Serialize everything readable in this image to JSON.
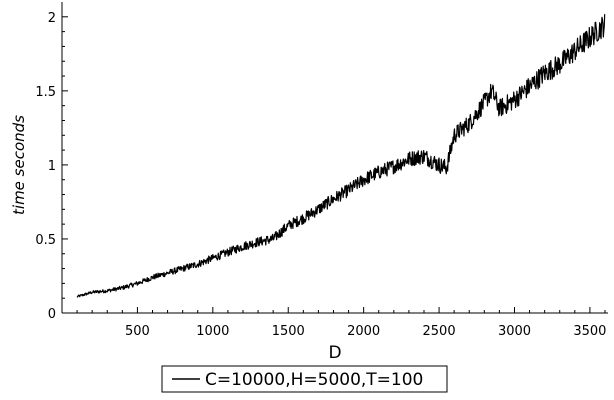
{
  "chart_data": {
    "type": "line",
    "xlabel": "D",
    "ylabel": "time seconds",
    "xlim": [
      0,
      3620
    ],
    "ylim": [
      0,
      2.1
    ],
    "x_ticks": [
      500,
      1000,
      1500,
      2000,
      2500,
      3000,
      3500
    ],
    "y_ticks": [
      0,
      0.5,
      1,
      1.5,
      2
    ],
    "x_tick_labels": [
      "500",
      "1000",
      "1500",
      "2000",
      "2500",
      "3000",
      "3500"
    ],
    "y_tick_labels": [
      "0",
      "0.5",
      "1",
      "1.5",
      "2"
    ],
    "grid": false,
    "legend_position": "bottom-center",
    "line_color": "#000000",
    "series": [
      {
        "name": "C=10000,H=5000,T=100",
        "x": [
          100,
          200,
          300,
          400,
          500,
          600,
          700,
          800,
          900,
          1000,
          1100,
          1200,
          1300,
          1400,
          1500,
          1600,
          1700,
          1800,
          1900,
          2000,
          2100,
          2200,
          2300,
          2400,
          2500,
          2550,
          2600,
          2700,
          2800,
          2850,
          2900,
          3000,
          3100,
          3200,
          3300,
          3400,
          3500,
          3600
        ],
        "y": [
          0.11,
          0.14,
          0.15,
          0.17,
          0.2,
          0.24,
          0.27,
          0.3,
          0.33,
          0.37,
          0.41,
          0.45,
          0.48,
          0.5,
          0.59,
          0.64,
          0.7,
          0.77,
          0.83,
          0.9,
          0.95,
          0.99,
          1.04,
          1.06,
          1.0,
          0.98,
          1.2,
          1.28,
          1.42,
          1.5,
          1.38,
          1.44,
          1.53,
          1.62,
          1.68,
          1.77,
          1.86,
          1.95
        ]
      }
    ]
  }
}
